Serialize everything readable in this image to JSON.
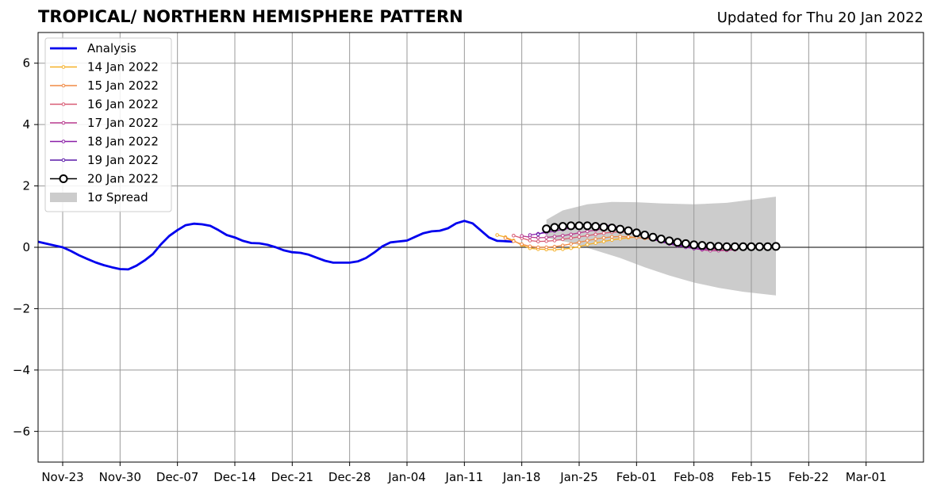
{
  "header": {
    "title": "TROPICAL/ NORTHERN HEMISPHERE PATTERN",
    "updated": "Updated for Thu 20 Jan 2022"
  },
  "chart_data": {
    "type": "line",
    "title": "TROPICAL/ NORTHERN HEMISPHERE PATTERN",
    "subtitle": "Updated for Thu 20 Jan 2022",
    "xlabel": "",
    "ylabel": "",
    "x_axis": {
      "type": "date",
      "range": [
        "2021-11-20",
        "2022-03-08"
      ],
      "ticks": [
        "2021-11-23",
        "2021-11-30",
        "2021-12-07",
        "2021-12-14",
        "2021-12-21",
        "2021-12-28",
        "2022-01-04",
        "2022-01-11",
        "2022-01-18",
        "2022-01-25",
        "2022-02-01",
        "2022-02-08",
        "2022-02-15",
        "2022-02-22",
        "2022-03-01"
      ],
      "tick_labels": [
        "Nov-23",
        "Nov-30",
        "Dec-07",
        "Dec-14",
        "Dec-21",
        "Dec-28",
        "Jan-04",
        "Jan-11",
        "Jan-18",
        "Jan-25",
        "Feb-01",
        "Feb-08",
        "Feb-15",
        "Feb-22",
        "Mar-01"
      ]
    },
    "y_axis": {
      "range": [
        -7,
        7
      ],
      "ticks": [
        -6,
        -4,
        -2,
        0,
        2,
        4,
        6
      ],
      "tick_labels": [
        "−6",
        "−4",
        "−2",
        "0",
        "2",
        "4",
        "6"
      ]
    },
    "grid": true,
    "zero_line": true,
    "legend": "top-left",
    "legend_labels": {
      "analysis": "Analysis",
      "f14": "14 Jan 2022",
      "f15": "15 Jan 2022",
      "f16": "16 Jan 2022",
      "f17": "17 Jan 2022",
      "f18": "18 Jan 2022",
      "f19": "19 Jan 2022",
      "f20": "20 Jan 2022",
      "spread": "1σ Spread"
    },
    "analysis": {
      "name": "Analysis",
      "color": "#0000ee",
      "start": "2021-11-20",
      "values": [
        0.18,
        0.12,
        0.06,
        0.0,
        -0.12,
        -0.26,
        -0.38,
        -0.49,
        -0.58,
        -0.65,
        -0.71,
        -0.72,
        -0.6,
        -0.43,
        -0.22,
        0.1,
        0.37,
        0.56,
        0.72,
        0.77,
        0.75,
        0.7,
        0.56,
        0.4,
        0.32,
        0.21,
        0.14,
        0.13,
        0.08,
        0.0,
        -0.1,
        -0.16,
        -0.18,
        -0.24,
        -0.34,
        -0.44,
        -0.5,
        -0.5,
        -0.5,
        -0.46,
        -0.35,
        -0.17,
        0.03,
        0.16,
        0.19,
        0.22,
        0.34,
        0.46,
        0.52,
        0.54,
        0.62,
        0.78,
        0.86,
        0.78,
        0.55,
        0.32,
        0.21,
        0.2,
        0.18
      ]
    },
    "forecasts": [
      {
        "name": "14 Jan 2022",
        "color": "#f5b027",
        "start": "2022-01-15",
        "values": [
          0.4,
          0.33,
          0.22,
          0.07,
          -0.03,
          -0.06,
          -0.07,
          -0.08,
          -0.06,
          -0.03,
          0.02,
          0.09,
          0.14,
          0.19,
          0.24,
          0.28,
          0.31,
          0.33
        ]
      },
      {
        "name": "15 Jan 2022",
        "color": "#f08a45",
        "start": "2022-01-16",
        "values": [
          0.3,
          0.2,
          0.1,
          0.03,
          0.0,
          0.0,
          0.02,
          0.06,
          0.11,
          0.16,
          0.22,
          0.27,
          0.31,
          0.34,
          0.35,
          0.34,
          0.32,
          0.29,
          0.26,
          0.23,
          0.2,
          0.17,
          0.13,
          0.1,
          0.06,
          0.03
        ]
      },
      {
        "name": "16 Jan 2022",
        "color": "#d85a73",
        "start": "2022-01-17",
        "values": [
          0.38,
          0.3,
          0.22,
          0.19,
          0.2,
          0.22,
          0.26,
          0.3,
          0.34,
          0.38,
          0.42,
          0.46,
          0.49,
          0.5,
          0.48,
          0.44,
          0.39,
          0.33,
          0.27,
          0.2,
          0.14,
          0.08,
          0.03,
          -0.01,
          -0.05,
          -0.08,
          -0.09,
          -0.07
        ]
      },
      {
        "name": "17 Jan 2022",
        "color": "#b83a8e",
        "start": "2022-01-18",
        "values": [
          0.37,
          0.33,
          0.31,
          0.32,
          0.35,
          0.38,
          0.42,
          0.47,
          0.52,
          0.56,
          0.6,
          0.62,
          0.61,
          0.57,
          0.5,
          0.42,
          0.33,
          0.25,
          0.16,
          0.09,
          0.02,
          -0.04,
          -0.08,
          -0.11,
          -0.11,
          -0.1,
          -0.08
        ]
      },
      {
        "name": "18 Jan 2022",
        "color": "#8a1fa8",
        "start": "2022-01-19",
        "values": [
          0.4,
          0.44,
          0.48,
          0.53,
          0.58,
          0.63,
          0.67,
          0.7,
          0.72,
          0.72,
          0.7,
          0.64,
          0.55,
          0.45,
          0.35,
          0.26,
          0.18,
          0.11,
          0.05,
          0.0,
          -0.04,
          -0.06,
          -0.05,
          -0.03,
          0.0,
          0.02
        ]
      },
      {
        "name": "19 Jan 2022",
        "color": "#5a18a8",
        "start": "2022-01-20",
        "values": [
          0.42,
          0.53,
          0.6,
          0.66,
          0.7,
          0.73,
          0.74,
          0.74,
          0.72,
          0.68,
          0.63,
          0.56,
          0.47,
          0.38,
          0.29,
          0.21,
          0.14,
          0.08,
          0.04,
          0.01,
          0.0,
          0.0,
          0.01,
          0.02,
          0.03
        ]
      },
      {
        "name": "20 Jan 2022",
        "color": "#000000",
        "start": "2022-01-21",
        "values": [
          0.6,
          0.65,
          0.68,
          0.7,
          0.7,
          0.7,
          0.68,
          0.66,
          0.63,
          0.59,
          0.54,
          0.47,
          0.4,
          0.33,
          0.27,
          0.21,
          0.16,
          0.12,
          0.08,
          0.06,
          0.04,
          0.03,
          0.02,
          0.02,
          0.02,
          0.02,
          0.02,
          0.02,
          0.03
        ]
      }
    ],
    "spread": {
      "name": "1σ Spread",
      "color": "#cccccc",
      "start": "2022-01-21",
      "end": "2022-02-18",
      "upper_points": [
        [
          "2022-01-21",
          0.9
        ],
        [
          "2022-01-23",
          1.2
        ],
        [
          "2022-01-26",
          1.4
        ],
        [
          "2022-01-29",
          1.48
        ],
        [
          "2022-02-01",
          1.47
        ],
        [
          "2022-02-04",
          1.43
        ],
        [
          "2022-02-08",
          1.4
        ],
        [
          "2022-02-12",
          1.45
        ],
        [
          "2022-02-15",
          1.55
        ],
        [
          "2022-02-18",
          1.65
        ]
      ],
      "lower_points": [
        [
          "2022-01-21",
          0.3
        ],
        [
          "2022-01-24",
          0.15
        ],
        [
          "2022-01-27",
          -0.1
        ],
        [
          "2022-01-30",
          -0.35
        ],
        [
          "2022-02-02",
          -0.65
        ],
        [
          "2022-02-05",
          -0.92
        ],
        [
          "2022-02-08",
          -1.15
        ],
        [
          "2022-02-11",
          -1.32
        ],
        [
          "2022-02-14",
          -1.45
        ],
        [
          "2022-02-18",
          -1.57
        ]
      ]
    }
  }
}
